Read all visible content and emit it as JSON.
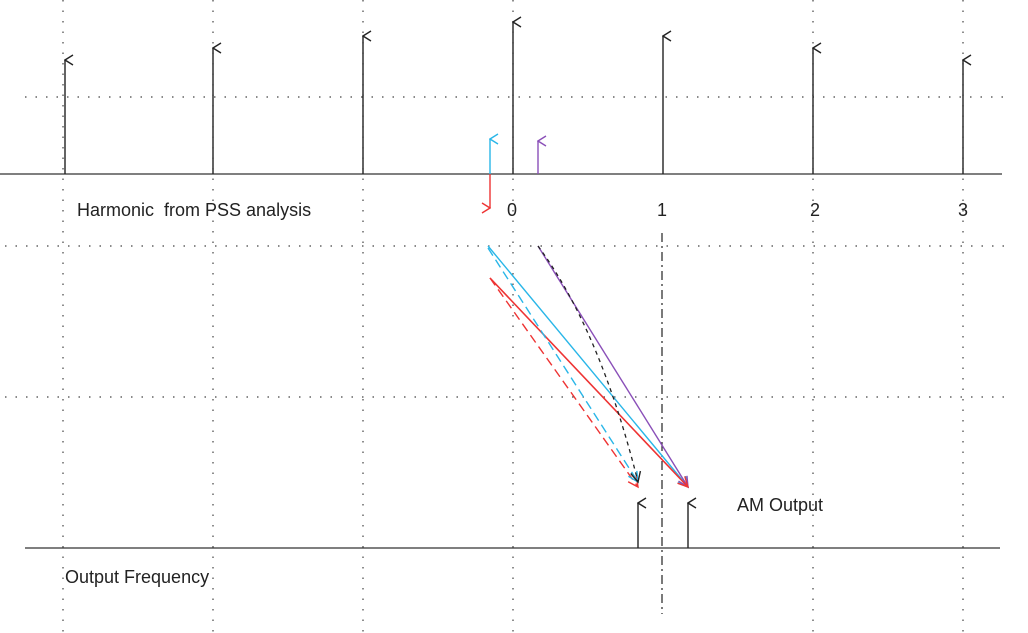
{
  "top_axis": {
    "label": "Harmonic  from PSS analysis",
    "harmonics": [
      "0",
      "1",
      "2",
      "3"
    ]
  },
  "annotation": "AM Output",
  "bottom_axis": {
    "label": "Output Frequency"
  }
}
